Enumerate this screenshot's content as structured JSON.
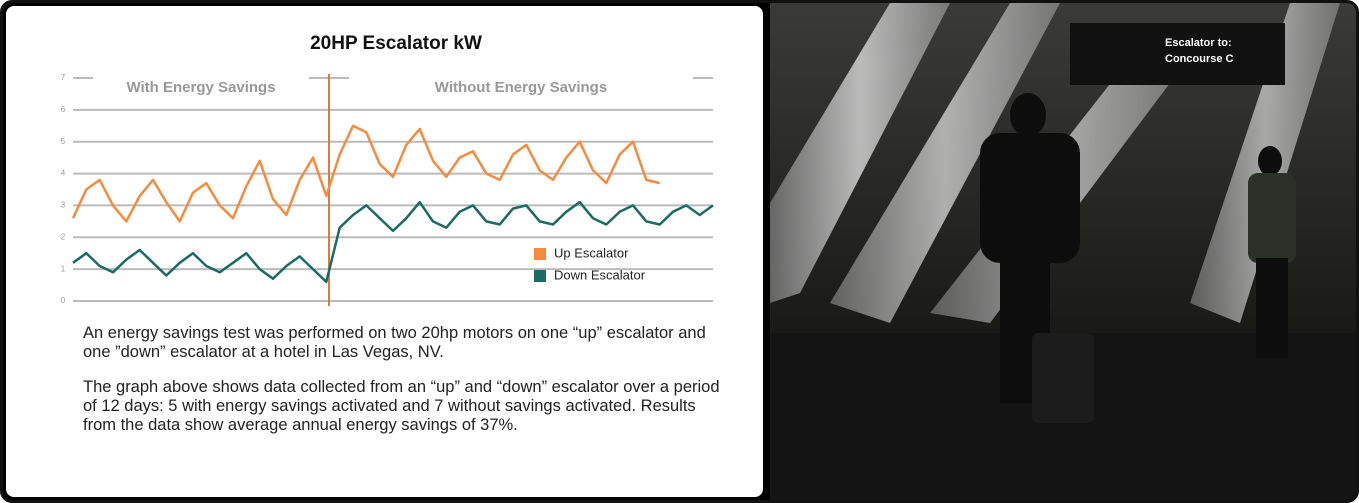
{
  "chart_data": {
    "type": "line",
    "title": "20HP Escalator kW",
    "annotations": [
      "With Energy Savings",
      "Without Energy Savings"
    ],
    "divider_x": 4.8,
    "x": [
      0,
      0.25,
      0.5,
      0.75,
      1,
      1.25,
      1.5,
      1.75,
      2,
      2.25,
      2.5,
      2.75,
      3,
      3.25,
      3.5,
      3.75,
      4,
      4.25,
      4.5,
      4.75,
      5,
      5.25,
      5.5,
      5.75,
      6,
      6.25,
      6.5,
      6.75,
      7,
      7.25,
      7.5,
      7.75,
      8,
      8.25,
      8.5,
      8.75,
      9,
      9.25,
      9.5,
      9.75,
      10,
      10.25,
      10.5,
      10.75,
      11,
      11.25,
      11.5,
      11.75,
      12
    ],
    "series": [
      {
        "name": "Up Escalator",
        "color": "#f58b3c",
        "values": [
          2.6,
          3.5,
          3.8,
          3.0,
          2.5,
          3.3,
          3.8,
          3.1,
          2.5,
          3.4,
          3.7,
          3.0,
          2.6,
          3.6,
          4.4,
          3.2,
          2.7,
          3.8,
          4.5,
          3.3,
          4.6,
          5.5,
          5.3,
          4.3,
          3.9,
          4.9,
          5.4,
          4.4,
          3.9,
          4.5,
          4.7,
          4.0,
          3.8,
          4.6,
          4.9,
          4.1,
          3.8,
          4.5,
          5.0,
          4.1,
          3.7,
          4.6,
          5.0,
          3.8,
          3.7,
          null,
          null,
          null,
          null
        ]
      },
      {
        "name": "Down Escalator",
        "color": "#1a6b63",
        "values": [
          1.2,
          1.5,
          1.1,
          0.9,
          1.3,
          1.6,
          1.2,
          0.8,
          1.2,
          1.5,
          1.1,
          0.9,
          1.2,
          1.5,
          1.0,
          0.7,
          1.1,
          1.4,
          1.0,
          0.6,
          2.3,
          2.7,
          3.0,
          2.6,
          2.2,
          2.6,
          3.1,
          2.5,
          2.3,
          2.8,
          3.0,
          2.5,
          2.4,
          2.9,
          3.0,
          2.5,
          2.4,
          2.8,
          3.1,
          2.6,
          2.4,
          2.8,
          3.0,
          2.5,
          2.4,
          2.8,
          3.0,
          2.7,
          3.0
        ]
      }
    ],
    "xlim": [
      0,
      12
    ],
    "ylim": [
      0,
      7
    ],
    "yticks": [
      0,
      1,
      2,
      3,
      4,
      5,
      6,
      7
    ],
    "grid": true,
    "legend": "lower right"
  },
  "paragraphs": [
    "An energy savings test was performed on two 20hp motors on one “up” escalator and one ”down” escalator at a hotel in Las Vegas, NV.",
    "The graph above shows data collected from an “up” and “down” escalator over a period of 12 days: 5 with energy savings activated and 7 without savings activated. Results from the data show average annual energy savings of 37%."
  ],
  "photo_sign": [
    "Escalator to:",
    "Concourse C"
  ]
}
